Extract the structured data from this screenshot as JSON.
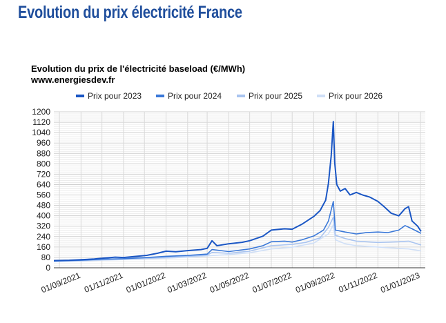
{
  "page": {
    "heading": "Evolution du prix électricité France"
  },
  "chart_data": {
    "type": "line",
    "title": "Evolution du prix de l'électricité baseload (€/MWh)",
    "subtitle": "www.energiesdev.fr",
    "xlabel": "",
    "ylabel": "",
    "ylim": [
      0,
      1200
    ],
    "yticks": [
      0,
      80,
      160,
      240,
      320,
      400,
      480,
      560,
      640,
      720,
      800,
      880,
      960,
      1040,
      1120,
      1200
    ],
    "xlim": [
      "2021-07-24",
      "2023-01-08"
    ],
    "xticks": [
      "01/09/2021",
      "01/11/2021",
      "01/01/2022",
      "01/03/2022",
      "01/05/2022",
      "01/07/2022",
      "01/09/2022",
      "01/11/2022",
      "01/01/2023"
    ],
    "grid": true,
    "legend_position": "top",
    "series": [
      {
        "name": "Prix pour 2023",
        "color": "#1a56c4",
        "width": 2,
        "points": [
          [
            "2021-07-24",
            55
          ],
          [
            "2021-08-15",
            58
          ],
          [
            "2021-09-01",
            62
          ],
          [
            "2021-09-20",
            68
          ],
          [
            "2021-10-05",
            75
          ],
          [
            "2021-10-20",
            82
          ],
          [
            "2021-11-01",
            79
          ],
          [
            "2021-11-20",
            88
          ],
          [
            "2021-12-05",
            96
          ],
          [
            "2021-12-20",
            112
          ],
          [
            "2022-01-01",
            128
          ],
          [
            "2022-01-15",
            123
          ],
          [
            "2022-02-01",
            132
          ],
          [
            "2022-02-20",
            140
          ],
          [
            "2022-03-01",
            150
          ],
          [
            "2022-03-08",
            208
          ],
          [
            "2022-03-15",
            170
          ],
          [
            "2022-04-01",
            185
          ],
          [
            "2022-04-20",
            196
          ],
          [
            "2022-05-01",
            208
          ],
          [
            "2022-05-20",
            243
          ],
          [
            "2022-06-01",
            290
          ],
          [
            "2022-06-20",
            300
          ],
          [
            "2022-07-01",
            297
          ],
          [
            "2022-07-15",
            335
          ],
          [
            "2022-08-01",
            395
          ],
          [
            "2022-08-10",
            440
          ],
          [
            "2022-08-18",
            520
          ],
          [
            "2022-08-22",
            650
          ],
          [
            "2022-08-26",
            860
          ],
          [
            "2022-08-29",
            1125
          ],
          [
            "2022-08-31",
            810
          ],
          [
            "2022-09-03",
            640
          ],
          [
            "2022-09-08",
            590
          ],
          [
            "2022-09-15",
            610
          ],
          [
            "2022-09-22",
            560
          ],
          [
            "2022-10-01",
            580
          ],
          [
            "2022-10-10",
            560
          ],
          [
            "2022-10-20",
            545
          ],
          [
            "2022-11-01",
            510
          ],
          [
            "2022-11-10",
            470
          ],
          [
            "2022-11-20",
            420
          ],
          [
            "2022-12-01",
            400
          ],
          [
            "2022-12-10",
            455
          ],
          [
            "2022-12-15",
            470
          ],
          [
            "2022-12-20",
            360
          ],
          [
            "2022-12-28",
            320
          ],
          [
            "2023-01-02",
            280
          ]
        ]
      },
      {
        "name": "Prix pour 2024",
        "color": "#3a78d8",
        "width": 1.6,
        "points": [
          [
            "2021-07-24",
            52
          ],
          [
            "2021-09-01",
            58
          ],
          [
            "2021-10-01",
            66
          ],
          [
            "2021-11-01",
            70
          ],
          [
            "2021-12-01",
            78
          ],
          [
            "2022-01-01",
            88
          ],
          [
            "2022-02-01",
            95
          ],
          [
            "2022-03-01",
            105
          ],
          [
            "2022-03-08",
            140
          ],
          [
            "2022-04-01",
            125
          ],
          [
            "2022-05-01",
            145
          ],
          [
            "2022-05-20",
            170
          ],
          [
            "2022-06-01",
            200
          ],
          [
            "2022-06-20",
            205
          ],
          [
            "2022-07-01",
            198
          ],
          [
            "2022-07-15",
            215
          ],
          [
            "2022-08-01",
            245
          ],
          [
            "2022-08-15",
            290
          ],
          [
            "2022-08-22",
            360
          ],
          [
            "2022-08-29",
            510
          ],
          [
            "2022-09-01",
            290
          ],
          [
            "2022-09-15",
            275
          ],
          [
            "2022-10-01",
            260
          ],
          [
            "2022-10-15",
            270
          ],
          [
            "2022-11-01",
            275
          ],
          [
            "2022-11-15",
            270
          ],
          [
            "2022-12-01",
            290
          ],
          [
            "2022-12-10",
            325
          ],
          [
            "2022-12-20",
            300
          ],
          [
            "2023-01-02",
            265
          ]
        ]
      },
      {
        "name": "Prix pour 2025",
        "color": "#a9c4f0",
        "width": 1.6,
        "points": [
          [
            "2021-07-24",
            50
          ],
          [
            "2021-09-01",
            55
          ],
          [
            "2021-10-01",
            62
          ],
          [
            "2021-11-01",
            67
          ],
          [
            "2021-12-01",
            72
          ],
          [
            "2022-01-01",
            80
          ],
          [
            "2022-02-01",
            88
          ],
          [
            "2022-03-01",
            98
          ],
          [
            "2022-03-08",
            118
          ],
          [
            "2022-04-01",
            112
          ],
          [
            "2022-05-01",
            128
          ],
          [
            "2022-06-01",
            170
          ],
          [
            "2022-07-01",
            180
          ],
          [
            "2022-07-20",
            195
          ],
          [
            "2022-08-10",
            230
          ],
          [
            "2022-08-22",
            310
          ],
          [
            "2022-08-29",
            390
          ],
          [
            "2022-09-01",
            250
          ],
          [
            "2022-09-15",
            225
          ],
          [
            "2022-10-01",
            205
          ],
          [
            "2022-11-01",
            195
          ],
          [
            "2022-12-01",
            200
          ],
          [
            "2022-12-15",
            205
          ],
          [
            "2023-01-02",
            175
          ]
        ]
      },
      {
        "name": "Prix pour 2026",
        "color": "#cfdff7",
        "width": 1.6,
        "points": [
          [
            "2021-07-24",
            48
          ],
          [
            "2021-09-01",
            52
          ],
          [
            "2021-10-01",
            58
          ],
          [
            "2021-11-01",
            63
          ],
          [
            "2021-12-01",
            68
          ],
          [
            "2022-01-01",
            74
          ],
          [
            "2022-02-01",
            82
          ],
          [
            "2022-03-01",
            92
          ],
          [
            "2022-04-01",
            102
          ],
          [
            "2022-05-01",
            115
          ],
          [
            "2022-06-01",
            145
          ],
          [
            "2022-07-01",
            158
          ],
          [
            "2022-08-01",
            190
          ],
          [
            "2022-08-22",
            260
          ],
          [
            "2022-08-29",
            330
          ],
          [
            "2022-09-01",
            215
          ],
          [
            "2022-09-15",
            185
          ],
          [
            "2022-10-01",
            170
          ],
          [
            "2022-11-01",
            160
          ],
          [
            "2022-12-01",
            150
          ],
          [
            "2022-12-15",
            145
          ],
          [
            "2023-01-02",
            130
          ]
        ]
      }
    ]
  }
}
